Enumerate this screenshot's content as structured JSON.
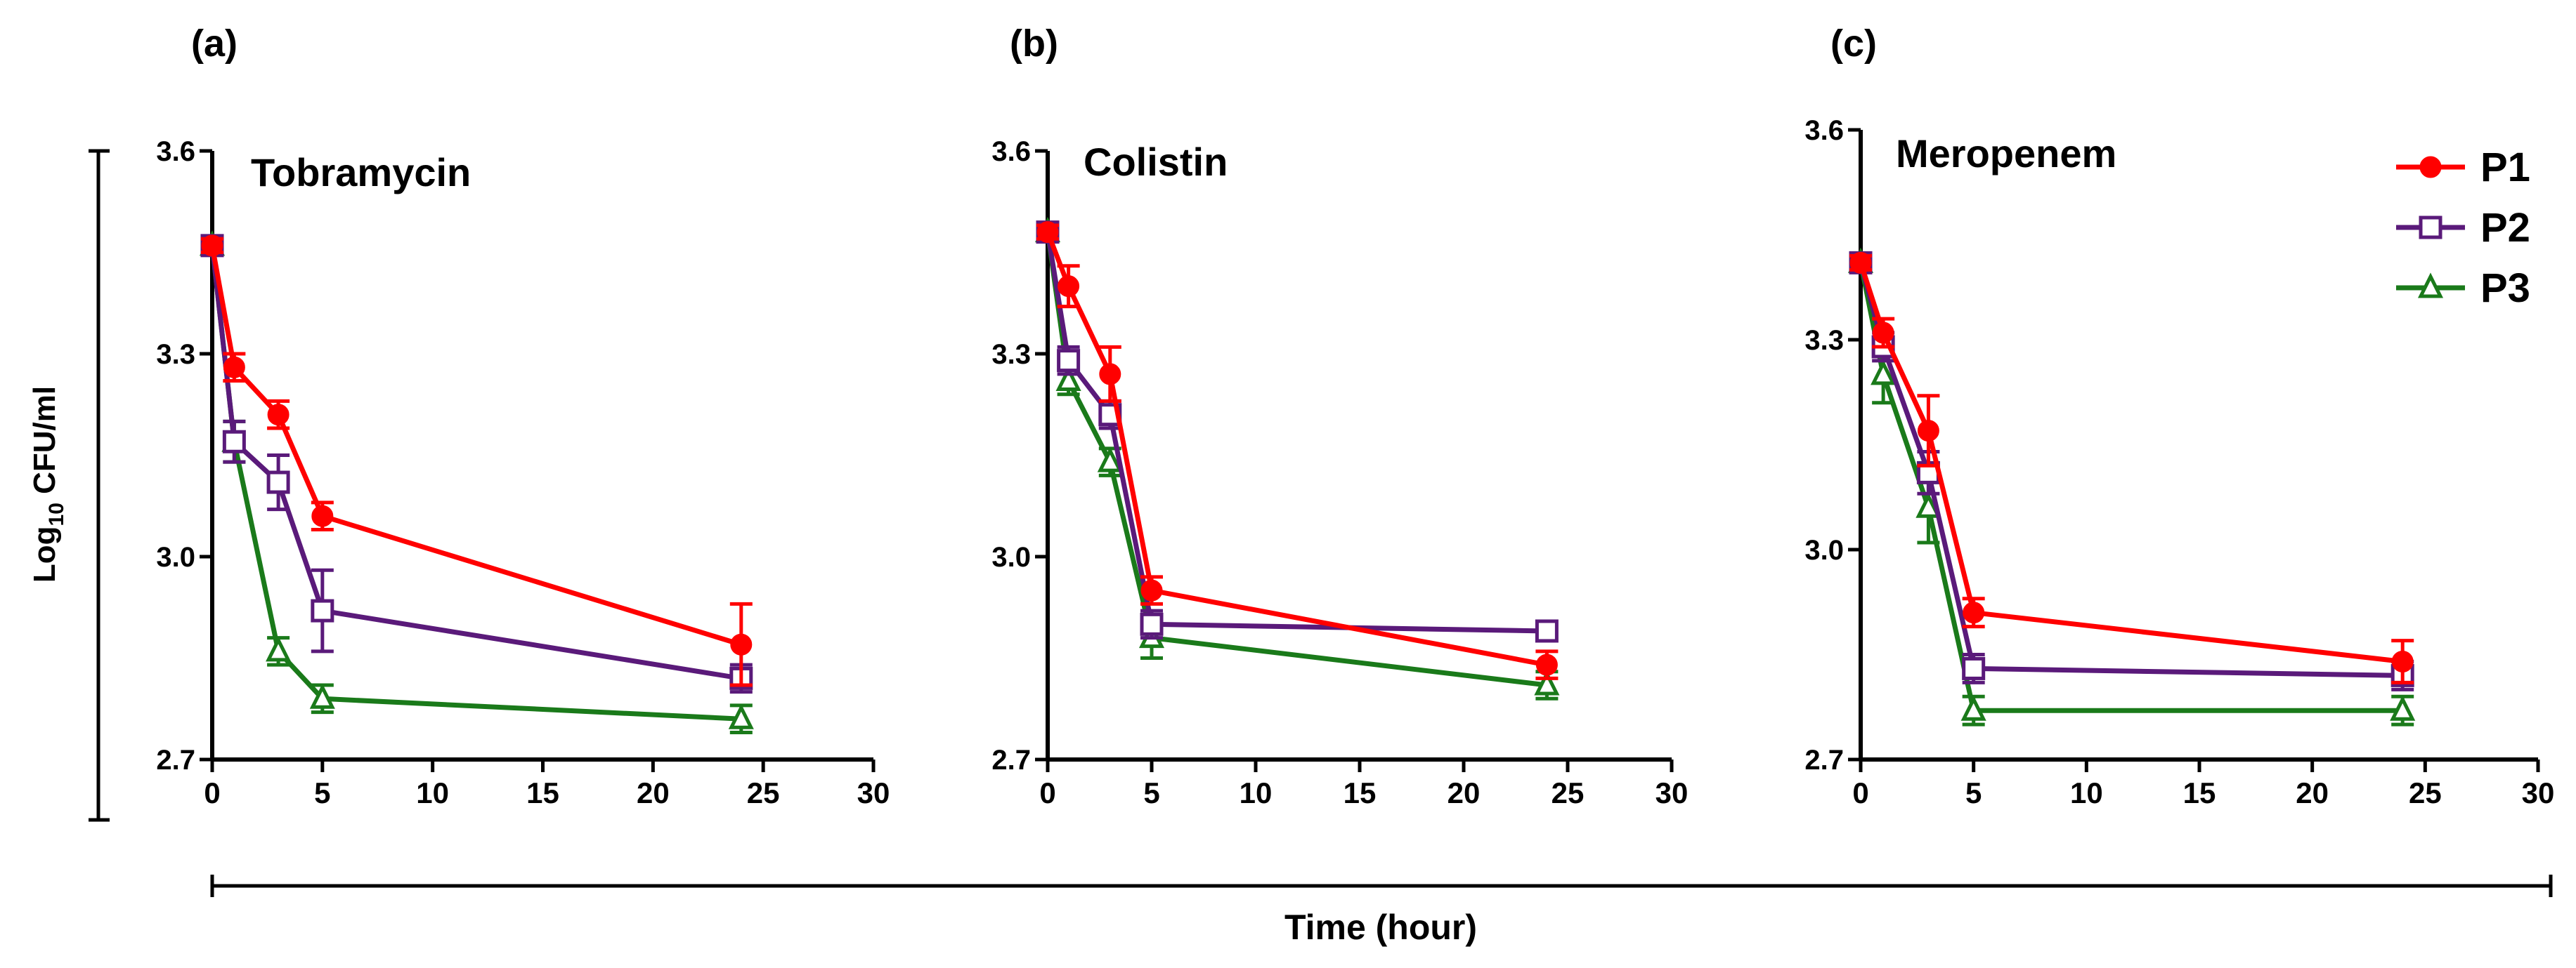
{
  "figure": {
    "ylabel_main": "Log",
    "ylabel_sub": "10",
    "ylabel_rest": " CFU/ml",
    "xlabel": "Time (hour)"
  },
  "legend": [
    {
      "name": "P1",
      "color": "#ff0000",
      "marker": "filled-circle"
    },
    {
      "name": "P2",
      "color": "#5a1a7a",
      "marker": "open-square"
    },
    {
      "name": "P3",
      "color": "#1a7a1a",
      "marker": "open-triangle"
    }
  ],
  "chart_data": [
    {
      "type": "line",
      "panel_label": "(a)",
      "title": "Tobramycin",
      "xlim": [
        0,
        30
      ],
      "ylim": [
        2.7,
        3.6
      ],
      "xticks": [
        "0",
        "5",
        "10",
        "15",
        "20",
        "25",
        "30"
      ],
      "yticks": [
        "2.7",
        "3.0",
        "3.3",
        "3.6"
      ],
      "x": [
        0,
        1,
        3,
        5,
        24
      ],
      "series": [
        {
          "name": "P1",
          "values": [
            3.46,
            3.28,
            3.21,
            3.06,
            2.87
          ],
          "errors": [
            0.01,
            0.02,
            0.02,
            0.02,
            0.06
          ]
        },
        {
          "name": "P2",
          "values": [
            3.46,
            3.17,
            3.11,
            2.92,
            2.82
          ],
          "errors": [
            0.01,
            0.03,
            0.04,
            0.06,
            0.02
          ]
        },
        {
          "name": "P3",
          "values": [
            3.46,
            3.17,
            2.86,
            2.79,
            2.76
          ],
          "errors": [
            0.01,
            0.03,
            0.02,
            0.02,
            0.02
          ]
        }
      ]
    },
    {
      "type": "line",
      "panel_label": "(b)",
      "title": "Colistin",
      "xlim": [
        0,
        30
      ],
      "ylim": [
        2.7,
        3.6
      ],
      "xticks": [
        "0",
        "5",
        "10",
        "15",
        "20",
        "25",
        "30"
      ],
      "yticks": [
        "2.7",
        "3.0",
        "3.3",
        "3.6"
      ],
      "x": [
        0,
        1,
        3,
        5,
        24
      ],
      "series": [
        {
          "name": "P1",
          "values": [
            3.48,
            3.4,
            3.27,
            2.95,
            2.84
          ],
          "errors": [
            0.01,
            0.03,
            0.04,
            0.02,
            0.02
          ]
        },
        {
          "name": "P2",
          "values": [
            3.48,
            3.29,
            3.21,
            2.9,
            2.89
          ],
          "errors": [
            0.01,
            0.02,
            0.02,
            0.02,
            0.01
          ]
        },
        {
          "name": "P3",
          "values": [
            3.48,
            3.26,
            3.14,
            2.88,
            2.81
          ],
          "errors": [
            0.01,
            0.02,
            0.02,
            0.03,
            0.02
          ]
        }
      ]
    },
    {
      "type": "line",
      "panel_label": "(c)",
      "title": "Meropenem",
      "xlim": [
        0,
        30
      ],
      "ylim": [
        2.7,
        3.6
      ],
      "xticks": [
        "0",
        "5",
        "10",
        "15",
        "20",
        "25",
        "30"
      ],
      "yticks": [
        "2.7",
        "3.0",
        "3.3",
        "3.6"
      ],
      "x": [
        0,
        1,
        3,
        5,
        24
      ],
      "series": [
        {
          "name": "P1",
          "values": [
            3.41,
            3.31,
            3.17,
            2.91,
            2.84
          ],
          "errors": [
            0.01,
            0.02,
            0.05,
            0.02,
            0.03
          ]
        },
        {
          "name": "P2",
          "values": [
            3.41,
            3.29,
            3.11,
            2.83,
            2.82
          ],
          "errors": [
            0.01,
            0.02,
            0.03,
            0.02,
            0.02
          ]
        },
        {
          "name": "P3",
          "values": [
            3.41,
            3.25,
            3.06,
            2.77,
            2.77
          ],
          "errors": [
            0.01,
            0.04,
            0.05,
            0.02,
            0.02
          ]
        }
      ]
    }
  ]
}
